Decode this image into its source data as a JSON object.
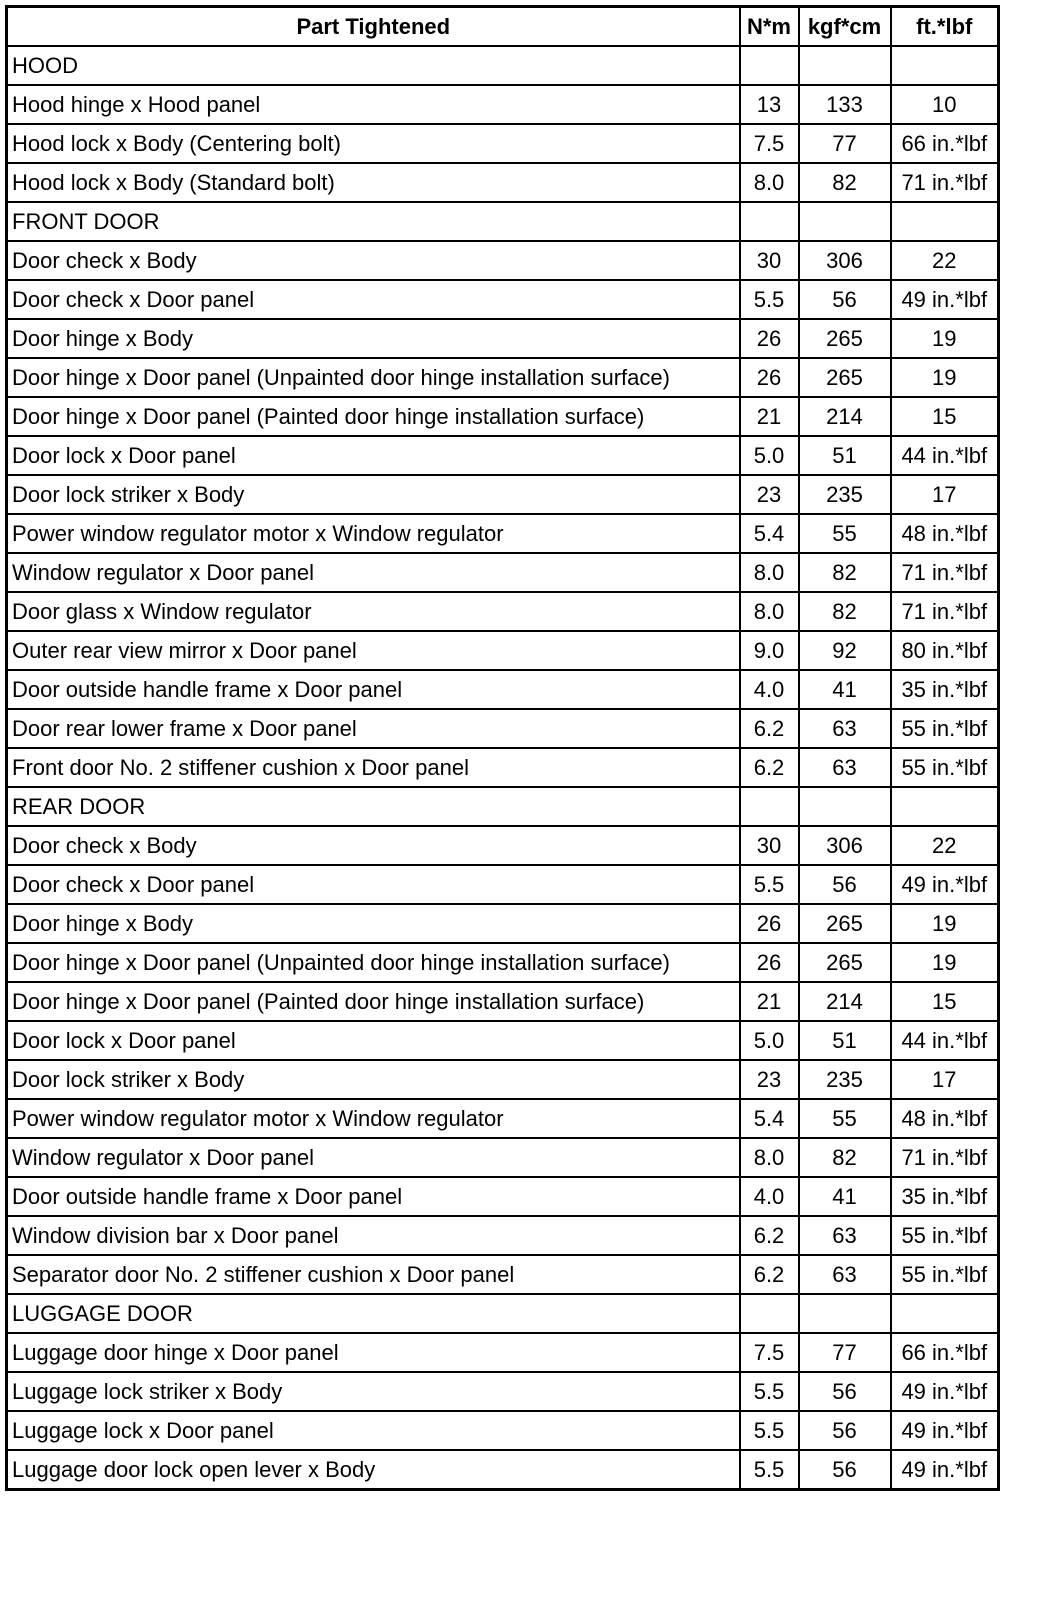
{
  "table": {
    "headers": [
      "Part Tightened",
      "N*m",
      "kgf*cm",
      "ft.*lbf"
    ],
    "rows": [
      [
        "HOOD",
        "",
        "",
        ""
      ],
      [
        "Hood hinge x Hood panel",
        "13",
        "133",
        "10"
      ],
      [
        "Hood lock x Body (Centering bolt)",
        "7.5",
        "77",
        "66 in.*lbf"
      ],
      [
        "Hood lock x Body (Standard bolt)",
        "8.0",
        "82",
        "71 in.*lbf"
      ],
      [
        "FRONT DOOR",
        "",
        "",
        ""
      ],
      [
        "Door check x Body",
        "30",
        "306",
        "22"
      ],
      [
        "Door check x Door panel",
        "5.5",
        "56",
        "49 in.*lbf"
      ],
      [
        "Door hinge x Body",
        "26",
        "265",
        "19"
      ],
      [
        "Door hinge x Door panel (Unpainted door hinge installation surface)",
        "26",
        "265",
        "19"
      ],
      [
        "Door hinge x Door panel (Painted door hinge installation surface)",
        "21",
        "214",
        "15"
      ],
      [
        "Door lock x Door panel",
        "5.0",
        "51",
        "44 in.*lbf"
      ],
      [
        "Door lock striker x Body",
        "23",
        "235",
        "17"
      ],
      [
        "Power window regulator motor x Window regulator",
        "5.4",
        "55",
        "48 in.*lbf"
      ],
      [
        "Window regulator x Door panel",
        "8.0",
        "82",
        "71 in.*lbf"
      ],
      [
        "Door glass x Window regulator",
        "8.0",
        "82",
        "71 in.*lbf"
      ],
      [
        "Outer rear view mirror x Door panel",
        "9.0",
        "92",
        "80 in.*lbf"
      ],
      [
        "Door outside handle frame x Door panel",
        "4.0",
        "41",
        "35 in.*lbf"
      ],
      [
        "Door rear lower frame x Door panel",
        "6.2",
        "63",
        "55 in.*lbf"
      ],
      [
        "Front door No. 2 stiffener cushion x Door panel",
        "6.2",
        "63",
        "55 in.*lbf"
      ],
      [
        "REAR DOOR",
        "",
        "",
        ""
      ],
      [
        "Door check x Body",
        "30",
        "306",
        "22"
      ],
      [
        "Door check x Door panel",
        "5.5",
        "56",
        "49 in.*lbf"
      ],
      [
        "Door hinge x Body",
        "26",
        "265",
        "19"
      ],
      [
        "Door hinge x Door panel (Unpainted door hinge installation surface)",
        "26",
        "265",
        "19"
      ],
      [
        "Door hinge x Door panel (Painted door hinge installation surface)",
        "21",
        "214",
        "15"
      ],
      [
        "Door lock x Door panel",
        "5.0",
        "51",
        "44 in.*lbf"
      ],
      [
        "Door lock striker x Body",
        "23",
        "235",
        "17"
      ],
      [
        "Power window regulator motor x Window regulator",
        "5.4",
        "55",
        "48 in.*lbf"
      ],
      [
        "Window regulator x Door panel",
        "8.0",
        "82",
        "71 in.*lbf"
      ],
      [
        "Door outside handle frame x Door panel",
        "4.0",
        "41",
        "35 in.*lbf"
      ],
      [
        "Window division bar x Door panel",
        "6.2",
        "63",
        "55 in.*lbf"
      ],
      [
        "Separator door No. 2 stiffener cushion x Door panel",
        "6.2",
        "63",
        "55 in.*lbf"
      ],
      [
        "LUGGAGE DOOR",
        "",
        "",
        ""
      ],
      [
        "Luggage door hinge x Door panel",
        "7.5",
        "77",
        "66 in.*lbf"
      ],
      [
        "Luggage lock striker x Body",
        "5.5",
        "56",
        "49 in.*lbf"
      ],
      [
        "Luggage lock x Door panel",
        "5.5",
        "56",
        "49 in.*lbf"
      ],
      [
        "Luggage door lock open lever x Body",
        "5.5",
        "56",
        "49 in.*lbf"
      ]
    ]
  }
}
